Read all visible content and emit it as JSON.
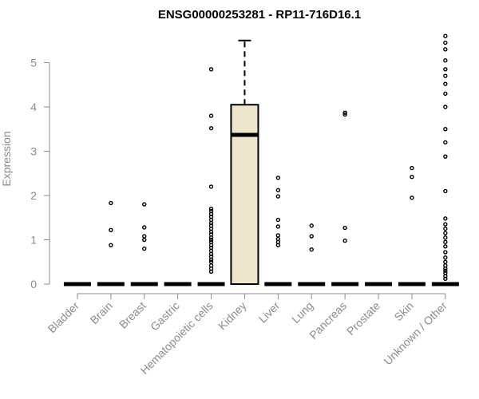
{
  "chart_data": {
    "type": "box",
    "title": "ENSG00000253281 - RP11-716D16.1",
    "xlabel": "",
    "ylabel": "Expression",
    "ylim": [
      0,
      5.6
    ],
    "yticks": [
      0,
      1,
      2,
      3,
      4,
      5
    ],
    "box_fill": "#ede6cc",
    "categories": [
      "Bladder",
      "Brain",
      "Breast",
      "Gastric",
      "Hematopoietic cells",
      "Kidney",
      "Liver",
      "Lung",
      "Pancreas",
      "Prostate",
      "Skin",
      "Unknown / Other"
    ],
    "boxes": [
      {
        "category": "Bladder",
        "q1": 0,
        "median": 0,
        "q3": 0,
        "whisker_low": 0,
        "whisker_high": 0,
        "outliers": []
      },
      {
        "category": "Brain",
        "q1": 0,
        "median": 0,
        "q3": 0,
        "whisker_low": 0,
        "whisker_high": 0,
        "outliers": [
          0.88,
          1.22,
          1.83
        ]
      },
      {
        "category": "Breast",
        "q1": 0,
        "median": 0,
        "q3": 0,
        "whisker_low": 0,
        "whisker_high": 0,
        "outliers": [
          0.8,
          1.0,
          1.08,
          1.28,
          1.8
        ]
      },
      {
        "category": "Gastric",
        "q1": 0,
        "median": 0,
        "q3": 0,
        "whisker_low": 0,
        "whisker_high": 0,
        "outliers": []
      },
      {
        "category": "Hematopoietic cells",
        "q1": 0,
        "median": 0,
        "q3": 0,
        "whisker_low": 0,
        "whisker_high": 0,
        "outliers": [
          0.28,
          0.35,
          0.42,
          0.5,
          0.55,
          0.62,
          0.68,
          0.75,
          0.82,
          0.88,
          0.95,
          1.0,
          1.05,
          1.12,
          1.18,
          1.25,
          1.32,
          1.38,
          1.45,
          1.52,
          1.58,
          1.65,
          1.7,
          2.2,
          3.52,
          3.8,
          4.85
        ]
      },
      {
        "category": "Kidney",
        "q1": 0,
        "median": 3.37,
        "q3": 4.05,
        "whisker_low": 0,
        "whisker_high": 5.5,
        "outliers": []
      },
      {
        "category": "Liver",
        "q1": 0,
        "median": 0,
        "q3": 0,
        "whisker_low": 0,
        "whisker_high": 0,
        "outliers": [
          0.88,
          0.95,
          1.02,
          1.1,
          1.3,
          1.45,
          1.98,
          2.12,
          2.4
        ]
      },
      {
        "category": "Lung",
        "q1": 0,
        "median": 0,
        "q3": 0,
        "whisker_low": 0,
        "whisker_high": 0,
        "outliers": [
          0.78,
          1.08,
          1.32
        ]
      },
      {
        "category": "Pancreas",
        "q1": 0,
        "median": 0,
        "q3": 0,
        "whisker_low": 0,
        "whisker_high": 0,
        "outliers": [
          0.98,
          1.27,
          3.83,
          3.87
        ]
      },
      {
        "category": "Prostate",
        "q1": 0,
        "median": 0,
        "q3": 0,
        "whisker_low": 0,
        "whisker_high": 0,
        "outliers": []
      },
      {
        "category": "Skin",
        "q1": 0,
        "median": 0,
        "q3": 0,
        "whisker_low": 0,
        "whisker_high": 0,
        "outliers": [
          1.95,
          2.42,
          2.62
        ]
      },
      {
        "category": "Unknown / Other",
        "q1": 0,
        "median": 0,
        "q3": 0,
        "whisker_low": 0,
        "whisker_high": 0,
        "outliers": [
          0.12,
          0.18,
          0.25,
          0.3,
          0.35,
          0.42,
          0.5,
          0.6,
          0.72,
          0.85,
          0.95,
          1.05,
          1.15,
          1.25,
          1.35,
          1.48,
          2.1,
          2.88,
          3.2,
          3.5,
          4.0,
          4.3,
          4.52,
          4.7,
          4.85,
          5.05,
          5.3,
          5.45,
          5.6
        ]
      }
    ]
  }
}
